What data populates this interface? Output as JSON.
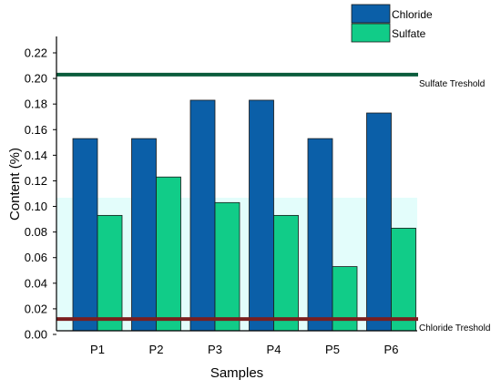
{
  "chart_data": {
    "type": "bar",
    "xlabel": "Samples",
    "ylabel": "Content (%)",
    "categories": [
      "P1",
      "P2",
      "P3",
      "P4",
      "P5",
      "P6"
    ],
    "series": [
      {
        "name": "Chloride",
        "values": [
          0.153,
          0.153,
          0.183,
          0.183,
          0.153,
          0.173
        ],
        "color": "#0b5fa8"
      },
      {
        "name": "Sulfate",
        "values": [
          0.093,
          0.123,
          0.103,
          0.093,
          0.053,
          0.083
        ],
        "color": "#11cc88"
      }
    ],
    "ylim": [
      0,
      0.22
    ],
    "yticks": [
      "0.00",
      "0.02",
      "0.04",
      "0.06",
      "0.08",
      "0.10",
      "0.12",
      "0.14",
      "0.16",
      "0.18",
      "0.20",
      "0.22"
    ],
    "reference_lines": [
      {
        "label": "Sulfate Treshold",
        "value": 0.203,
        "color": "#0a5c3c"
      },
      {
        "label": "Chloride Treshold",
        "value": 0.012,
        "color": "#7a1f1f"
      }
    ],
    "legend": "top-right",
    "grid": false
  }
}
